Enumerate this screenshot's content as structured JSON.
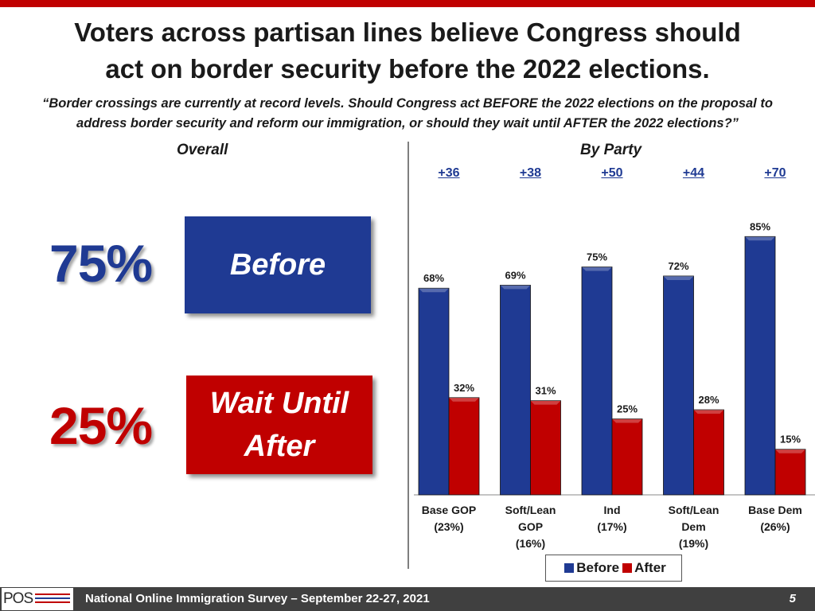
{
  "title_line1": "Voters across partisan lines believe Congress should",
  "title_line2": "act on border security before the 2022 elections.",
  "question_line1": "“Border crossings are currently at record levels. Should Congress act BEFORE the 2022 elections on the proposal to",
  "question_line2": "address border security and reform our immigration, or should they wait until AFTER the 2022 elections?”",
  "overall": {
    "header": "Overall",
    "before_pct": "75%",
    "before_label": "Before",
    "after_pct": "25%",
    "after_label_line1": "Wait Until",
    "after_label_line2": "After"
  },
  "by_party_header": "By Party",
  "colors": {
    "before": "#1f3a93",
    "after": "#c00000",
    "accent": "#c00000"
  },
  "chart_data": {
    "type": "bar",
    "categories": [
      "Base GOP (23%)",
      "Soft/Lean GOP (16%)",
      "Ind (17%)",
      "Soft/Lean Dem (19%)",
      "Base Dem (26%)"
    ],
    "category_lines": [
      [
        "Base GOP",
        "(23%)"
      ],
      [
        "Soft/Lean",
        "GOP",
        "(16%)"
      ],
      [
        "Ind",
        "(17%)"
      ],
      [
        "Soft/Lean",
        "Dem",
        "(19%)"
      ],
      [
        "Base Dem",
        "(26%)"
      ]
    ],
    "margins": [
      "+36",
      "+38",
      "+50",
      "+44",
      "+70"
    ],
    "series": [
      {
        "name": "Before",
        "values": [
          68,
          69,
          75,
          72,
          85
        ]
      },
      {
        "name": "After",
        "values": [
          32,
          31,
          25,
          28,
          15
        ]
      }
    ],
    "value_suffix": "%",
    "ylim": [
      0,
      100
    ]
  },
  "footer": {
    "logo": "POS",
    "text": "National Online Immigration Survey – September 22-27, 2021",
    "page": "5"
  }
}
